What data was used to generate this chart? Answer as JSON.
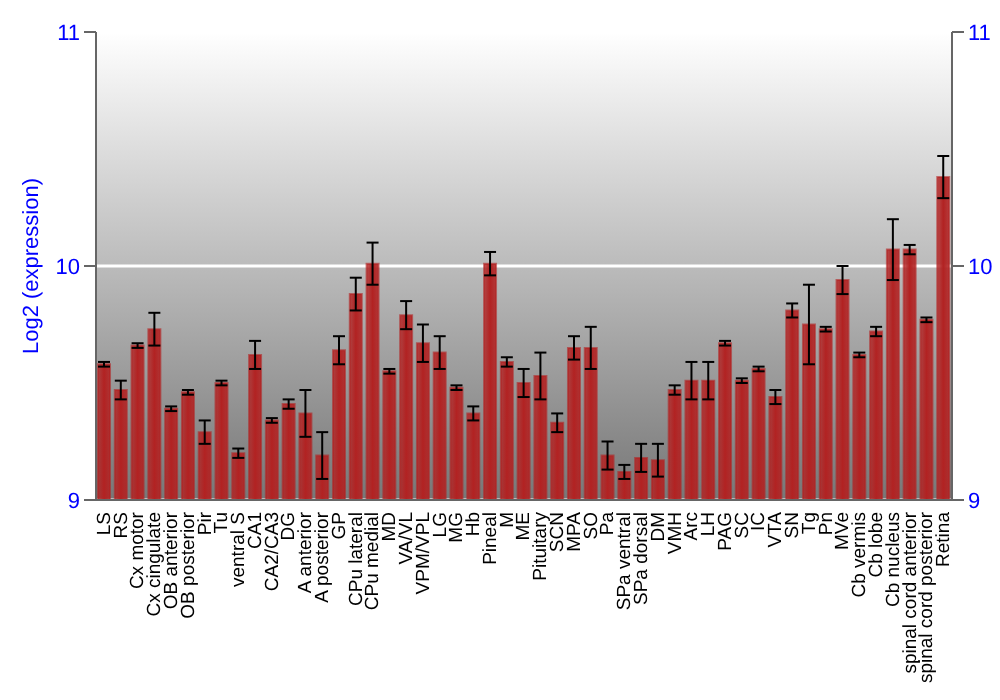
{
  "chart_data": {
    "type": "bar",
    "ylabel": "Log2 (expression)",
    "categories": [
      "LS",
      "RS",
      "Cx motor",
      "Cx cingulate",
      "OB anterior",
      "OB posterior",
      "Pir",
      "Tu",
      "ventral S",
      "CA1",
      "CA2/CA3",
      "DG",
      "A anterior",
      "A posterior",
      "GP",
      "CPu lateral",
      "CPu medial",
      "MD",
      "VA/VL",
      "VPM/VPL",
      "LG",
      "MG",
      "Hb",
      "Pineal",
      "M",
      "ME",
      "Pituitary",
      "SCN",
      "MPA",
      "SO",
      "Pa",
      "SPa ventral",
      "SPa dorsal",
      "DM",
      "VMH",
      "Arc",
      "LH",
      "PAG",
      "SC",
      "IC",
      "VTA",
      "SN",
      "Tg",
      "Pn",
      "MVe",
      "Cb vermis",
      "Cb lobe",
      "Cb nucleus",
      "spinal cord anterior",
      "spinal cord posterior",
      "Retina"
    ],
    "values": [
      9.58,
      9.47,
      9.66,
      9.73,
      9.39,
      9.46,
      9.29,
      9.5,
      9.2,
      9.62,
      9.34,
      9.41,
      9.37,
      9.19,
      9.64,
      9.88,
      10.01,
      9.55,
      9.79,
      9.67,
      9.63,
      9.48,
      9.37,
      10.01,
      9.59,
      9.5,
      9.53,
      9.33,
      9.65,
      9.65,
      9.19,
      9.12,
      9.18,
      9.17,
      9.47,
      9.51,
      9.51,
      9.67,
      9.51,
      9.56,
      9.44,
      9.81,
      9.75,
      9.73,
      9.94,
      9.62,
      9.72,
      10.07,
      10.07,
      9.77,
      10.38
    ],
    "errors": [
      0.01,
      0.04,
      0.01,
      0.07,
      0.01,
      0.01,
      0.05,
      0.01,
      0.02,
      0.06,
      0.01,
      0.02,
      0.1,
      0.1,
      0.06,
      0.07,
      0.09,
      0.01,
      0.06,
      0.08,
      0.07,
      0.01,
      0.03,
      0.05,
      0.02,
      0.06,
      0.1,
      0.04,
      0.05,
      0.09,
      0.06,
      0.03,
      0.06,
      0.07,
      0.02,
      0.08,
      0.08,
      0.01,
      0.01,
      0.01,
      0.03,
      0.03,
      0.17,
      0.01,
      0.06,
      0.01,
      0.02,
      0.13,
      0.02,
      0.01,
      0.09
    ],
    "color": "#b22222",
    "ylim": [
      9,
      11
    ],
    "yticks": [
      9,
      10,
      11
    ],
    "y2lim": [
      9,
      11
    ],
    "y2ticks": [
      9,
      10,
      11
    ],
    "grid": "y"
  }
}
